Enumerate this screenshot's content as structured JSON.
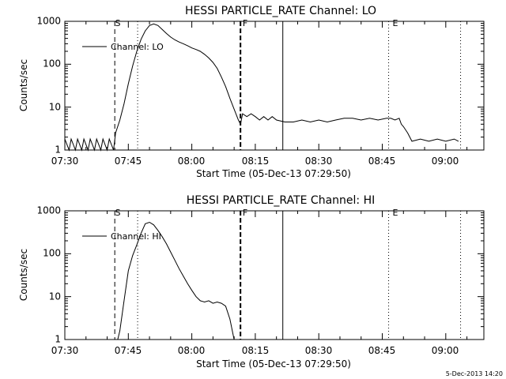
{
  "footer_stamp": "5-Dec-2013 14:20",
  "chart_data": [
    {
      "type": "line",
      "title": "HESSI PARTICLE_RATE Channel: LO",
      "xlabel": "Start Time (05-Dec-13 07:29:50)",
      "ylabel": "Counts/sec",
      "yscale": "log",
      "xlim_minutes": [
        0,
        99
      ],
      "ylim": [
        1,
        1000
      ],
      "x_ticks": [
        "07:30",
        "07:45",
        "08:00",
        "08:15",
        "08:30",
        "08:45",
        "09:00"
      ],
      "y_ticks": [
        "1",
        "10",
        "100",
        "1000"
      ],
      "legend": {
        "entries": [
          "Channel: LO"
        ],
        "placement": "top-left"
      },
      "markers": [
        {
          "label": "S",
          "style": "dashed",
          "minutes": 11.8
        },
        {
          "label": "",
          "style": "dotted",
          "minutes": 17.2
        },
        {
          "label": "F",
          "style": "dashed-thick",
          "minutes": 41.5
        },
        {
          "label": "",
          "style": "solid",
          "minutes": 51.5
        },
        {
          "label": "E",
          "style": "dotted",
          "minutes": 76.5
        },
        {
          "label": "",
          "style": "dotted",
          "minutes": 93.5
        }
      ],
      "series": [
        {
          "name": "Channel: LO",
          "x_minutes": [
            0,
            1,
            1.5,
            2.5,
            3,
            4,
            4.5,
            5.5,
            6,
            7,
            7.5,
            8.5,
            9,
            10,
            10.5,
            11.5,
            12,
            13,
            14,
            15,
            16,
            17,
            18,
            19,
            20,
            21,
            22,
            23,
            24,
            25,
            26,
            27,
            28,
            29,
            30,
            31,
            32,
            33,
            34,
            35,
            36,
            37,
            38,
            39,
            40,
            41,
            41.5,
            42,
            43,
            44,
            45,
            46,
            47,
            48,
            49,
            50,
            52,
            54,
            56,
            58,
            60,
            62,
            64,
            66,
            68,
            70,
            72,
            74,
            76,
            77,
            78,
            79,
            79.5,
            80,
            81,
            82,
            84,
            86,
            88,
            90,
            92,
            93
          ],
          "values": [
            1.8,
            1.0,
            1.8,
            1.0,
            1.8,
            1.0,
            1.8,
            1.0,
            1.8,
            1.0,
            1.8,
            1.0,
            1.8,
            1.0,
            1.8,
            1.0,
            2.5,
            5,
            12,
            35,
            90,
            200,
            380,
            600,
            800,
            870,
            800,
            650,
            520,
            430,
            370,
            330,
            300,
            270,
            240,
            220,
            200,
            170,
            140,
            110,
            80,
            50,
            30,
            16,
            9,
            5,
            4,
            7,
            6,
            7,
            6,
            5,
            6,
            5,
            6,
            5,
            4.5,
            4.5,
            5,
            4.5,
            5,
            4.5,
            5,
            5.5,
            5.5,
            5,
            5.5,
            5,
            5.5,
            5.5,
            5,
            5.5,
            4,
            3.5,
            2.5,
            1.6,
            1.8,
            1.6,
            1.8,
            1.6,
            1.8,
            1.6
          ]
        }
      ]
    },
    {
      "type": "line",
      "title": "HESSI PARTICLE_RATE Channel: HI",
      "xlabel": "Start Time (05-Dec-13 07:29:50)",
      "ylabel": "Counts/sec",
      "yscale": "log",
      "xlim_minutes": [
        0,
        99
      ],
      "ylim": [
        1,
        1000
      ],
      "x_ticks": [
        "07:30",
        "07:45",
        "08:00",
        "08:15",
        "08:30",
        "08:45",
        "09:00"
      ],
      "y_ticks": [
        "1",
        "10",
        "100",
        "1000"
      ],
      "legend": {
        "entries": [
          "Channel: HI"
        ],
        "placement": "top-left"
      },
      "markers": [
        {
          "label": "S",
          "style": "dashed",
          "minutes": 11.8
        },
        {
          "label": "",
          "style": "dotted",
          "minutes": 17.2
        },
        {
          "label": "F",
          "style": "dashed-thick",
          "minutes": 41.5
        },
        {
          "label": "",
          "style": "solid",
          "minutes": 51.5
        },
        {
          "label": "E",
          "style": "dotted",
          "minutes": 76.5
        },
        {
          "label": "",
          "style": "dotted",
          "minutes": 93.5
        }
      ],
      "series": [
        {
          "name": "Channel: HI",
          "x_minutes": [
            12.5,
            13,
            14,
            15,
            16,
            17,
            18,
            19,
            20,
            21,
            22,
            23,
            24,
            25,
            26,
            27,
            28,
            29,
            30,
            31,
            32,
            33,
            34,
            35,
            36,
            37,
            38,
            39,
            40
          ],
          "values": [
            1.0,
            1.6,
            8,
            40,
            90,
            160,
            300,
            500,
            540,
            470,
            350,
            250,
            170,
            110,
            70,
            45,
            30,
            20,
            14,
            10,
            8,
            7.5,
            8,
            7,
            7.5,
            7,
            6,
            3,
            1.0
          ]
        }
      ]
    }
  ]
}
